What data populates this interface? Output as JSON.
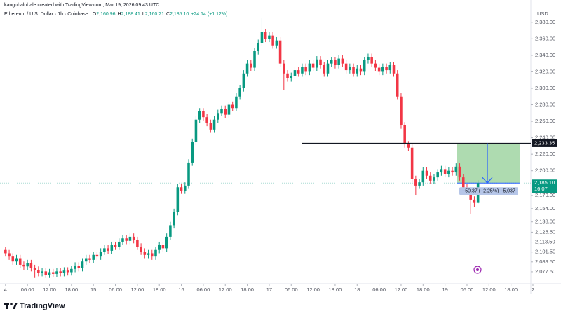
{
  "chart_data": {
    "type": "candlestick",
    "attribution": "kanguhalubale created with TradingView.com, Mar 19, 2026 09:43 UTC",
    "symbol": "Ethereum / U.S. Dollar · 1h · Coinbase",
    "ohlc": [
      {
        "key": "O",
        "value": "2,160.96"
      },
      {
        "key": "H",
        "value": "2,188.41"
      },
      {
        "key": "L",
        "value": "2,160.21"
      },
      {
        "key": "C",
        "value": "2,185.10"
      }
    ],
    "change": "+24.14 (+1.12%)",
    "currency": "USD",
    "brand": "TradingView",
    "up_color": "#089981",
    "down_color": "#f23645",
    "open": [
      2104,
      2100,
      2096,
      2090,
      2094,
      2086,
      2084,
      2088,
      2082,
      2080,
      2076,
      2078,
      2074,
      2077,
      2075,
      2078,
      2076,
      2079,
      2077,
      2081,
      2085,
      2082,
      2090,
      2094,
      2092,
      2098,
      2096,
      2102,
      2106,
      2103,
      2110,
      2108,
      2114,
      2118,
      2115,
      2120,
      2116,
      2108,
      2102,
      2098,
      2100,
      2096,
      2104,
      2110,
      2106,
      2120,
      2134,
      2150,
      2180,
      2176,
      2182,
      2210,
      2235,
      2262,
      2272,
      2265,
      2258,
      2250,
      2262,
      2270,
      2275,
      2268,
      2280,
      2276,
      2290,
      2300,
      2318,
      2330,
      2325,
      2345,
      2355,
      2368,
      2360,
      2364,
      2352,
      2358,
      2330,
      2318,
      2312,
      2315,
      2322,
      2318,
      2326,
      2320,
      2330,
      2325,
      2335,
      2328,
      2318,
      2330,
      2334,
      2328,
      2336,
      2330,
      2322,
      2326,
      2318,
      2324,
      2320,
      2334,
      2338,
      2330,
      2325,
      2320,
      2326,
      2322,
      2328,
      2318,
      2290,
      2255,
      2232,
      2228,
      2190,
      2182,
      2186,
      2200,
      2194,
      2188,
      2192,
      2198,
      2202,
      2196,
      2200,
      2198,
      2205,
      2192,
      2180,
      2176,
      2165,
      2160.96
    ],
    "high": [
      2108,
      2104,
      2100,
      2098,
      2098,
      2090,
      2092,
      2092,
      2086,
      2084,
      2082,
      2082,
      2081,
      2081,
      2082,
      2082,
      2083,
      2083,
      2085,
      2089,
      2089,
      2094,
      2098,
      2098,
      2102,
      2102,
      2106,
      2110,
      2110,
      2114,
      2114,
      2118,
      2122,
      2122,
      2124,
      2124,
      2120,
      2112,
      2106,
      2104,
      2104,
      2108,
      2114,
      2114,
      2124,
      2138,
      2154,
      2184,
      2184,
      2186,
      2214,
      2239,
      2266,
      2276,
      2276,
      2269,
      2262,
      2266,
      2274,
      2279,
      2279,
      2284,
      2284,
      2294,
      2304,
      2322,
      2334,
      2334,
      2349,
      2359,
      2385,
      2372,
      2368,
      2368,
      2362,
      2362,
      2334,
      2322,
      2319,
      2326,
      2326,
      2330,
      2330,
      2334,
      2334,
      2339,
      2339,
      2332,
      2334,
      2338,
      2338,
      2340,
      2340,
      2334,
      2330,
      2330,
      2328,
      2328,
      2338,
      2342,
      2342,
      2334,
      2329,
      2330,
      2330,
      2332,
      2332,
      2322,
      2294,
      2259,
      2236,
      2232,
      2194,
      2190,
      2204,
      2204,
      2198,
      2196,
      2202,
      2206,
      2206,
      2204,
      2204,
      2209,
      2209,
      2196,
      2184,
      2180,
      2169,
      2188.41
    ],
    "low": [
      2096,
      2092,
      2086,
      2086,
      2082,
      2080,
      2080,
      2078,
      2070,
      2072,
      2072,
      2070,
      2070,
      2071,
      2071,
      2072,
      2072,
      2073,
      2073,
      2077,
      2078,
      2078,
      2086,
      2088,
      2088,
      2092,
      2092,
      2098,
      2099,
      2099,
      2104,
      2104,
      2110,
      2111,
      2111,
      2112,
      2104,
      2098,
      2094,
      2094,
      2092,
      2092,
      2100,
      2102,
      2102,
      2116,
      2130,
      2146,
      2172,
      2172,
      2178,
      2206,
      2231,
      2258,
      2261,
      2254,
      2246,
      2246,
      2258,
      2266,
      2264,
      2264,
      2272,
      2272,
      2286,
      2296,
      2314,
      2321,
      2321,
      2341,
      2351,
      2356,
      2356,
      2348,
      2348,
      2326,
      2298,
      2308,
      2308,
      2311,
      2314,
      2314,
      2316,
      2316,
      2321,
      2321,
      2324,
      2314,
      2314,
      2326,
      2324,
      2324,
      2326,
      2318,
      2318,
      2314,
      2314,
      2316,
      2316,
      2330,
      2326,
      2321,
      2316,
      2316,
      2318,
      2318,
      2314,
      2286,
      2251,
      2228,
      2224,
      2186,
      2170,
      2178,
      2182,
      2190,
      2184,
      2184,
      2188,
      2194,
      2192,
      2192,
      2194,
      2194,
      2188,
      2176,
      2172,
      2148,
      2156,
      2160.21
    ],
    "close": [
      2100,
      2096,
      2090,
      2094,
      2086,
      2084,
      2088,
      2082,
      2080,
      2076,
      2078,
      2074,
      2077,
      2075,
      2078,
      2076,
      2079,
      2077,
      2081,
      2085,
      2082,
      2090,
      2094,
      2092,
      2098,
      2096,
      2102,
      2106,
      2103,
      2110,
      2108,
      2114,
      2118,
      2115,
      2120,
      2116,
      2108,
      2102,
      2098,
      2100,
      2096,
      2104,
      2110,
      2106,
      2120,
      2134,
      2150,
      2180,
      2176,
      2182,
      2210,
      2235,
      2262,
      2272,
      2265,
      2258,
      2250,
      2262,
      2270,
      2275,
      2268,
      2280,
      2276,
      2290,
      2300,
      2318,
      2330,
      2325,
      2345,
      2355,
      2368,
      2360,
      2364,
      2352,
      2358,
      2330,
      2318,
      2312,
      2315,
      2322,
      2318,
      2326,
      2320,
      2330,
      2325,
      2335,
      2328,
      2318,
      2330,
      2334,
      2328,
      2336,
      2330,
      2322,
      2326,
      2318,
      2324,
      2320,
      2334,
      2338,
      2330,
      2325,
      2320,
      2326,
      2322,
      2328,
      2318,
      2290,
      2255,
      2232,
      2228,
      2190,
      2182,
      2186,
      2200,
      2194,
      2188,
      2192,
      2198,
      2202,
      2196,
      2200,
      2198,
      2205,
      2192,
      2180,
      2176,
      2165,
      2160.96,
      2185.1
    ],
    "xlim": [
      -1.5,
      144
    ],
    "xticks": [
      {
        "value": 0,
        "label": "4"
      },
      {
        "value": 6,
        "label": "06:00"
      },
      {
        "value": 12,
        "label": "12:00"
      },
      {
        "value": 18,
        "label": "18:00"
      },
      {
        "value": 24,
        "label": "15"
      },
      {
        "value": 30,
        "label": "06:00"
      },
      {
        "value": 36,
        "label": "12:00"
      },
      {
        "value": 42,
        "label": "18:00"
      },
      {
        "value": 48,
        "label": "16"
      },
      {
        "value": 54,
        "label": "06:00"
      },
      {
        "value": 60,
        "label": "12:00"
      },
      {
        "value": 66,
        "label": "18:00"
      },
      {
        "value": 72,
        "label": "17"
      },
      {
        "value": 78,
        "label": "06:00"
      },
      {
        "value": 84,
        "label": "12:00"
      },
      {
        "value": 90,
        "label": "18:00"
      },
      {
        "value": 96,
        "label": "18"
      },
      {
        "value": 102,
        "label": "06:00"
      },
      {
        "value": 108,
        "label": "12:00"
      },
      {
        "value": 114,
        "label": "18:00"
      },
      {
        "value": 120,
        "label": "19"
      },
      {
        "value": 126,
        "label": "06:00"
      },
      {
        "value": 132,
        "label": "12:00"
      },
      {
        "value": 138,
        "label": "18:00"
      },
      {
        "value": 144,
        "label": "2"
      }
    ],
    "ylim": [
      2063,
      2407
    ],
    "yticks": [
      {
        "value": 2380,
        "label": "2,380.00"
      },
      {
        "value": 2360,
        "label": "2,360.00"
      },
      {
        "value": 2340,
        "label": "2,340.00"
      },
      {
        "value": 2320,
        "label": "2,320.00"
      },
      {
        "value": 2300,
        "label": "2,300.00"
      },
      {
        "value": 2280,
        "label": "2,280.00"
      },
      {
        "value": 2260,
        "label": "2,260.00"
      },
      {
        "value": 2240,
        "label": "2,240.00"
      },
      {
        "value": 2220,
        "label": "2,220.00"
      },
      {
        "value": 2200,
        "label": "2,200.00"
      },
      {
        "value": 2170,
        "label": "2,170.00"
      },
      {
        "value": 2154,
        "label": "2,154.00"
      },
      {
        "value": 2138,
        "label": "2,138.00"
      },
      {
        "value": 2125.5,
        "label": "2,125.50"
      },
      {
        "value": 2113.5,
        "label": "2,113.50"
      },
      {
        "value": 2101.5,
        "label": "2,101.50"
      },
      {
        "value": 2089.5,
        "label": "2,089.50"
      },
      {
        "value": 2077.5,
        "label": "2,077.50"
      }
    ],
    "level": {
      "value": 2233.35,
      "label": "2,233.35"
    },
    "last_price": {
      "value": 2185.1,
      "label": "2,185.10",
      "countdown": "16:07"
    },
    "position_label": "−50.37 (−2.25%) −5,037"
  }
}
